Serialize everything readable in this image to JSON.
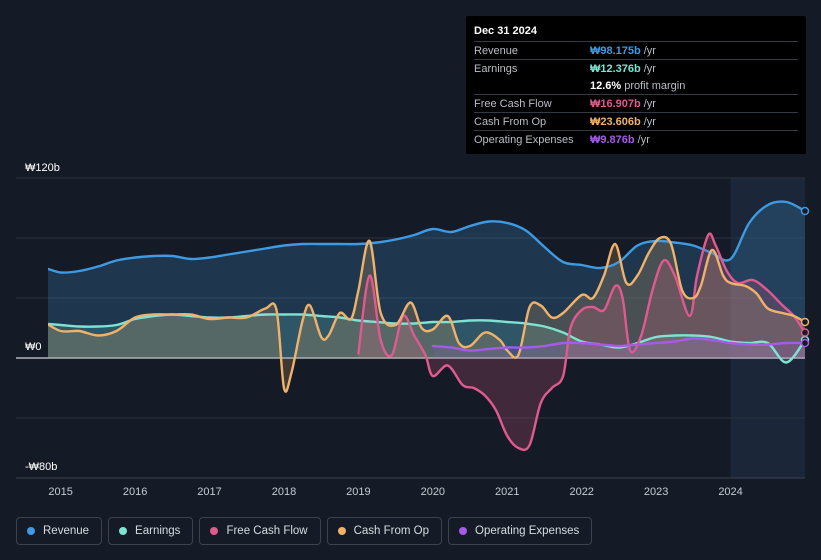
{
  "tooltip": {
    "date": "Dec 31 2024",
    "rows": [
      {
        "label": "Revenue",
        "value": "₩98.175b",
        "unit": "/yr",
        "color": "#3e9ae3"
      },
      {
        "label": "Earnings",
        "value": "₩12.376b",
        "unit": "/yr",
        "color": "#7ee3d3"
      },
      {
        "label": "",
        "value": "12.6%",
        "unit": "profit margin",
        "color": "#ffffff"
      },
      {
        "label": "Free Cash Flow",
        "value": "₩16.907b",
        "unit": "/yr",
        "color": "#e05a8f"
      },
      {
        "label": "Cash From Op",
        "value": "₩23.606b",
        "unit": "/yr",
        "color": "#f0b26a"
      },
      {
        "label": "Operating Expenses",
        "value": "₩9.876b",
        "unit": "/yr",
        "color": "#a65ae8"
      }
    ]
  },
  "legend": [
    {
      "label": "Revenue",
      "color": "#3e9ae3"
    },
    {
      "label": "Earnings",
      "color": "#7ee3d3"
    },
    {
      "label": "Free Cash Flow",
      "color": "#e05a8f"
    },
    {
      "label": "Cash From Op",
      "color": "#f0b26a"
    },
    {
      "label": "Operating Expenses",
      "color": "#a65ae8"
    }
  ],
  "chart_data": {
    "type": "area",
    "title": "",
    "ylim": [
      -80,
      120
    ],
    "ytick_labels": [
      "₩120b",
      "₩0",
      "-₩80b"
    ],
    "ytick_values": [
      120,
      0,
      -80
    ],
    "xtick_labels": [
      "2015",
      "2016",
      "2017",
      "2018",
      "2019",
      "2020",
      "2021",
      "2022",
      "2023",
      "2024"
    ],
    "xtick_values": [
      2015,
      2016,
      2017,
      2018,
      2019,
      2020,
      2021,
      2022,
      2023,
      2024
    ],
    "xlim": [
      2014.4,
      2025.0
    ],
    "forecast_start": 2024.0,
    "unit": "₩ billions",
    "series": [
      {
        "name": "Revenue",
        "color": "#3e9ae3",
        "x": [
          2014.5,
          2014.75,
          2015.0,
          2015.25,
          2015.5,
          2015.75,
          2016.0,
          2016.25,
          2016.5,
          2016.75,
          2017.0,
          2017.25,
          2017.5,
          2017.75,
          2018.0,
          2018.25,
          2018.5,
          2018.75,
          2019.0,
          2019.25,
          2019.5,
          2019.75,
          2020.0,
          2020.25,
          2020.5,
          2020.75,
          2021.0,
          2021.25,
          2021.5,
          2021.75,
          2022.0,
          2022.25,
          2022.5,
          2022.75,
          2023.0,
          2023.25,
          2023.5,
          2023.75,
          2024.0,
          2024.25,
          2024.5,
          2024.75,
          2025.0
        ],
        "values": [
          57,
          60,
          57,
          58,
          61,
          65,
          67,
          68,
          68,
          66,
          67,
          69,
          71,
          73,
          75,
          76,
          76,
          76,
          76,
          77,
          79,
          82,
          86,
          84,
          88,
          91,
          90,
          85,
          74,
          64,
          62,
          60,
          64,
          75,
          78,
          77,
          75,
          70,
          66,
          90,
          102,
          104,
          98
        ]
      },
      {
        "name": "Earnings",
        "color": "#7ee3d3",
        "x": [
          2014.5,
          2014.75,
          2015.0,
          2015.25,
          2015.5,
          2015.75,
          2016.0,
          2016.25,
          2016.5,
          2016.75,
          2017.0,
          2017.25,
          2017.5,
          2017.75,
          2018.0,
          2018.25,
          2018.5,
          2018.75,
          2019.0,
          2019.25,
          2019.5,
          2019.75,
          2020.0,
          2020.25,
          2020.5,
          2020.75,
          2021.0,
          2021.25,
          2021.5,
          2021.75,
          2022.0,
          2022.25,
          2022.5,
          2022.75,
          2023.0,
          2023.25,
          2023.5,
          2023.75,
          2024.0,
          2024.25,
          2024.5,
          2024.75,
          2025.0
        ],
        "values": [
          24,
          23,
          22,
          21,
          21,
          22,
          26,
          28,
          29,
          28,
          27,
          27,
          28,
          29,
          29,
          29,
          28,
          27,
          25,
          24,
          23,
          23,
          24,
          24,
          25,
          25,
          24,
          23,
          21,
          17,
          11,
          9,
          7,
          10,
          14,
          15,
          15,
          14,
          11,
          10,
          10,
          -3,
          12
        ]
      },
      {
        "name": "Free Cash Flow",
        "color": "#e05a8f",
        "x": [
          2019.0,
          2019.15,
          2019.3,
          2019.45,
          2019.6,
          2019.75,
          2019.9,
          2020.0,
          2020.2,
          2020.4,
          2020.55,
          2020.7,
          2020.85,
          2021.0,
          2021.15,
          2021.3,
          2021.45,
          2021.6,
          2021.75,
          2021.85,
          2022.0,
          2022.15,
          2022.3,
          2022.45,
          2022.55,
          2022.65,
          2022.8,
          2022.95,
          2023.1,
          2023.25,
          2023.45,
          2023.55,
          2023.7,
          2023.8,
          2023.95,
          2024.1,
          2024.3,
          2024.5,
          2024.7,
          2024.85,
          2025.0
        ],
        "values": [
          3,
          55,
          12,
          2,
          28,
          15,
          2,
          -12,
          -5,
          -18,
          -20,
          -25,
          -35,
          -52,
          -60,
          -58,
          -30,
          -20,
          -12,
          20,
          32,
          34,
          32,
          48,
          40,
          5,
          15,
          45,
          65,
          55,
          28,
          55,
          82,
          75,
          58,
          50,
          52,
          45,
          35,
          28,
          17
        ]
      },
      {
        "name": "Cash From Op",
        "color": "#f0b26a",
        "x": [
          2014.5,
          2014.75,
          2015.0,
          2015.25,
          2015.5,
          2015.75,
          2016.0,
          2016.25,
          2016.5,
          2016.75,
          2017.0,
          2017.25,
          2017.5,
          2017.75,
          2017.9,
          2018.0,
          2018.1,
          2018.25,
          2018.35,
          2018.5,
          2018.6,
          2018.75,
          2018.9,
          2019.0,
          2019.15,
          2019.3,
          2019.5,
          2019.7,
          2019.85,
          2020.0,
          2020.2,
          2020.35,
          2020.5,
          2020.7,
          2020.9,
          2021.0,
          2021.15,
          2021.3,
          2021.45,
          2021.6,
          2021.75,
          2022.0,
          2022.15,
          2022.3,
          2022.45,
          2022.6,
          2022.75,
          2022.9,
          2023.05,
          2023.2,
          2023.35,
          2023.5,
          2023.6,
          2023.75,
          2023.9,
          2024.0,
          2024.2,
          2024.35,
          2024.5,
          2024.7,
          2024.85,
          2025.0
        ],
        "values": [
          24,
          24,
          18,
          18,
          15,
          18,
          27,
          29,
          29,
          29,
          26,
          27,
          27,
          33,
          32,
          -20,
          -10,
          25,
          35,
          14,
          15,
          30,
          26,
          45,
          78,
          30,
          22,
          37,
          20,
          19,
          28,
          10,
          8,
          17,
          12,
          5,
          2,
          34,
          35,
          27,
          30,
          42,
          40,
          55,
          76,
          50,
          55,
          70,
          80,
          76,
          45,
          40,
          48,
          72,
          55,
          50,
          48,
          43,
          33,
          30,
          28,
          24
        ]
      },
      {
        "name": "Operating Expenses",
        "color": "#a65ae8",
        "x": [
          2020.0,
          2020.25,
          2020.5,
          2020.75,
          2021.0,
          2021.25,
          2021.5,
          2021.75,
          2022.0,
          2022.25,
          2022.5,
          2022.75,
          2023.0,
          2023.25,
          2023.5,
          2023.75,
          2024.0,
          2024.25,
          2024.5,
          2024.75,
          2025.0
        ],
        "values": [
          8,
          7,
          5,
          6,
          7,
          7,
          8,
          10,
          10,
          9,
          8,
          9,
          10,
          11,
          13,
          12,
          10,
          9,
          9,
          10,
          10
        ]
      }
    ]
  }
}
